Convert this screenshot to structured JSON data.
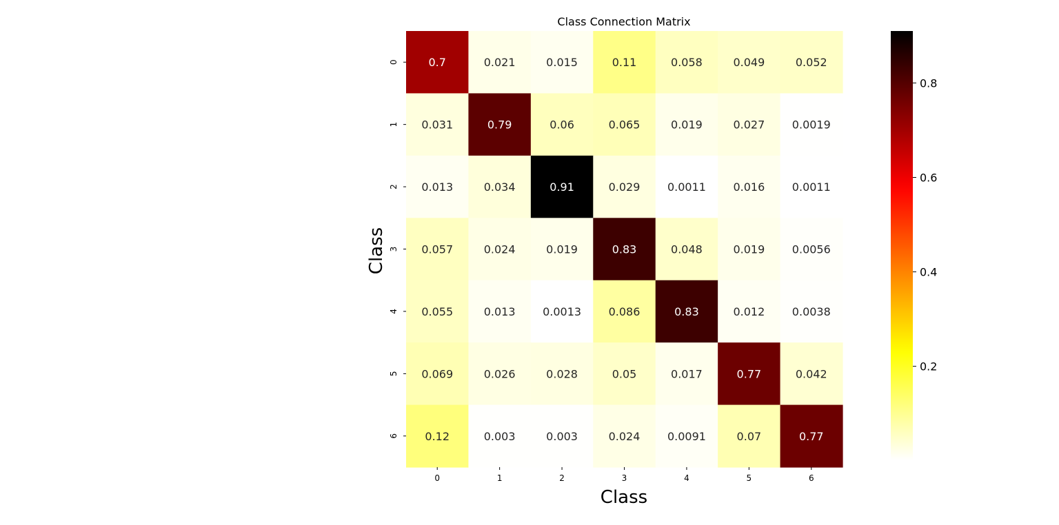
{
  "chart_data": {
    "type": "heatmap",
    "title": "Class Connection Matrix",
    "xlabel": "Class",
    "ylabel": "Class",
    "x_categories": [
      "0",
      "1",
      "2",
      "3",
      "4",
      "5",
      "6"
    ],
    "y_categories": [
      "0",
      "1",
      "2",
      "3",
      "4",
      "5",
      "6"
    ],
    "values": [
      [
        0.7,
        0.021,
        0.015,
        0.11,
        0.058,
        0.049,
        0.052
      ],
      [
        0.031,
        0.79,
        0.06,
        0.065,
        0.019,
        0.027,
        0.0019
      ],
      [
        0.013,
        0.034,
        0.91,
        0.029,
        0.0011,
        0.016,
        0.0011
      ],
      [
        0.057,
        0.024,
        0.019,
        0.83,
        0.048,
        0.019,
        0.0056
      ],
      [
        0.055,
        0.013,
        0.0013,
        0.086,
        0.83,
        0.012,
        0.0038
      ],
      [
        0.069,
        0.026,
        0.028,
        0.05,
        0.017,
        0.77,
        0.042
      ],
      [
        0.12,
        0.003,
        0.003,
        0.024,
        0.0091,
        0.07,
        0.77
      ]
    ],
    "labels": [
      [
        "0.7",
        "0.021",
        "0.015",
        "0.11",
        "0.058",
        "0.049",
        "0.052"
      ],
      [
        "0.031",
        "0.79",
        "0.06",
        "0.065",
        "0.019",
        "0.027",
        "0.0019"
      ],
      [
        "0.013",
        "0.034",
        "0.91",
        "0.029",
        "0.0011",
        "0.016",
        "0.0011"
      ],
      [
        "0.057",
        "0.024",
        "0.019",
        "0.83",
        "0.048",
        "0.019",
        "0.0056"
      ],
      [
        "0.055",
        "0.013",
        "0.0013",
        "0.086",
        "0.83",
        "0.012",
        "0.0038"
      ],
      [
        "0.069",
        "0.026",
        "0.028",
        "0.05",
        "0.017",
        "0.77",
        "0.042"
      ],
      [
        "0.12",
        "0.003",
        "0.003",
        "0.024",
        "0.0091",
        "0.07",
        "0.77"
      ]
    ],
    "colormap": "hot_r",
    "vmin": 0.0011,
    "vmax": 0.91,
    "colorbar": {
      "ticks": [
        0.2,
        0.4,
        0.6,
        0.8
      ],
      "tick_labels": [
        "0.2",
        "0.4",
        "0.6",
        "0.8"
      ]
    },
    "grid": false,
    "legend": "colorbar-right"
  }
}
